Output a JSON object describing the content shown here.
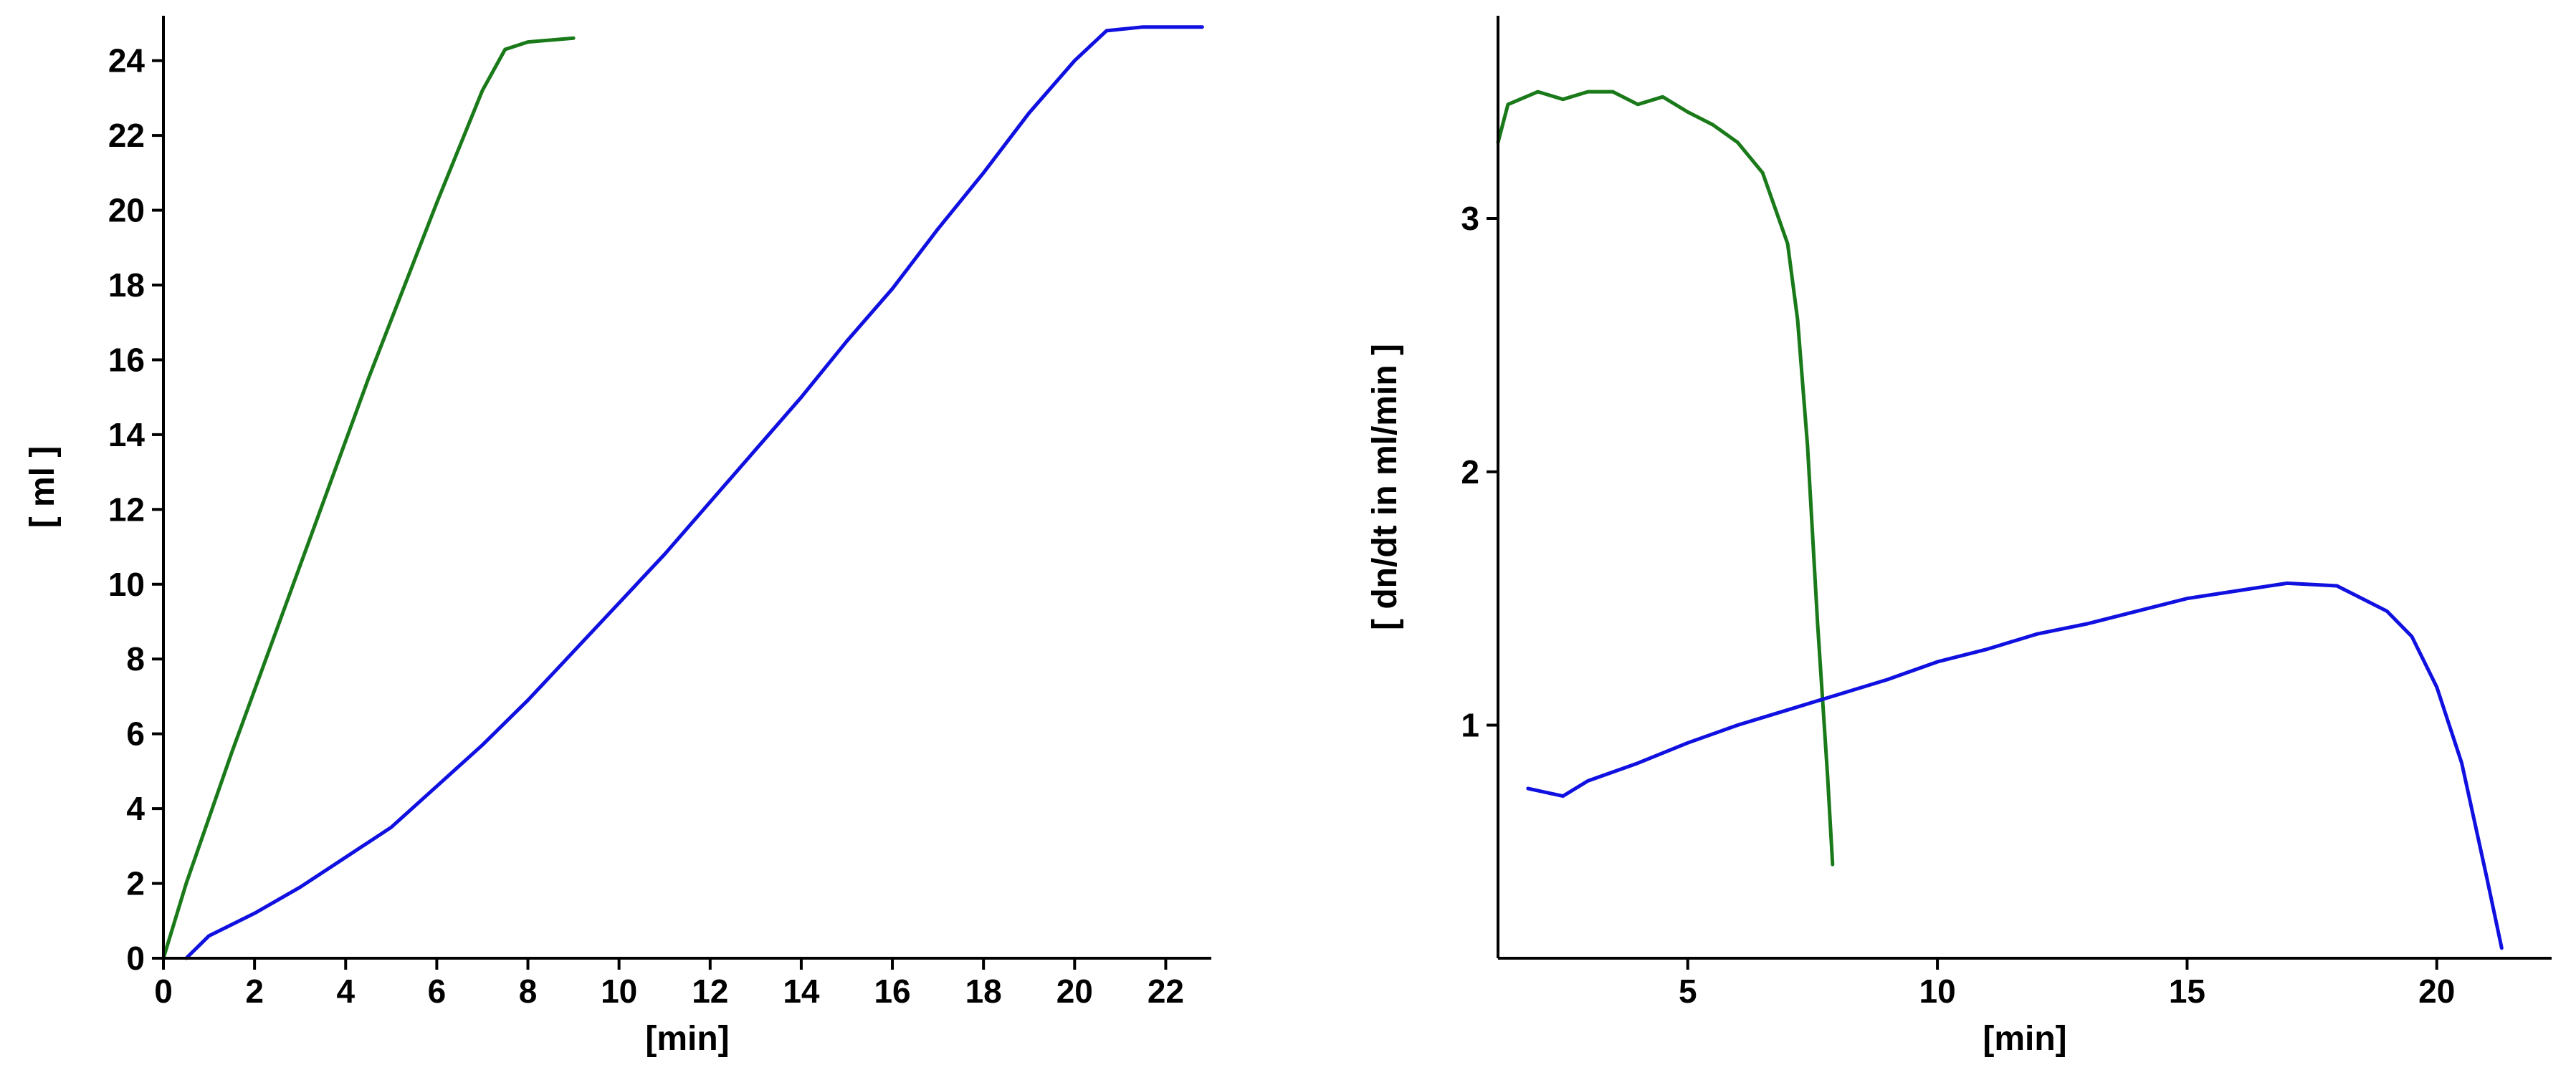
{
  "chart_data": [
    {
      "type": "line",
      "xlabel": "[min]",
      "ylabel": "[ ml ]",
      "xlim": [
        0,
        23
      ],
      "ylim": [
        0,
        25.2
      ],
      "xticks": [
        0,
        2,
        4,
        6,
        8,
        10,
        12,
        14,
        16,
        18,
        20,
        22
      ],
      "yticks": [
        0,
        2,
        4,
        6,
        8,
        10,
        12,
        14,
        16,
        18,
        20,
        22,
        24
      ],
      "grid": false,
      "series": [
        {
          "color": "#1a7a1a",
          "points": [
            [
              0,
              0
            ],
            [
              0.5,
              2
            ],
            [
              1.5,
              5.5
            ],
            [
              3,
              10.5
            ],
            [
              4.5,
              15.5
            ],
            [
              6,
              20.2
            ],
            [
              7,
              23.2
            ],
            [
              7.5,
              24.3
            ],
            [
              8,
              24.5
            ],
            [
              9,
              24.6
            ]
          ]
        },
        {
          "color": "#1010e0",
          "points": [
            [
              0.5,
              0
            ],
            [
              1,
              0.6
            ],
            [
              2,
              1.2
            ],
            [
              3,
              1.9
            ],
            [
              4,
              2.7
            ],
            [
              5,
              3.5
            ],
            [
              6,
              4.6
            ],
            [
              7,
              5.7
            ],
            [
              8,
              6.9
            ],
            [
              9,
              8.2
            ],
            [
              10,
              9.5
            ],
            [
              11,
              10.8
            ],
            [
              12,
              12.2
            ],
            [
              13,
              13.6
            ],
            [
              14,
              15.0
            ],
            [
              15,
              16.5
            ],
            [
              16,
              17.9
            ],
            [
              17,
              19.5
            ],
            [
              18,
              21.0
            ],
            [
              19,
              22.6
            ],
            [
              20,
              24.0
            ],
            [
              20.7,
              24.8
            ],
            [
              21.5,
              24.9
            ],
            [
              22.8,
              24.9
            ]
          ]
        }
      ]
    },
    {
      "type": "line",
      "xlabel": "[min]",
      "ylabel": "[ dn/dt in ml/min ]",
      "xlim": [
        1.2,
        22.3
      ],
      "ylim": [
        0.08,
        3.8
      ],
      "xticks": [
        5,
        10,
        15,
        20
      ],
      "yticks": [
        1,
        2,
        3
      ],
      "grid": false,
      "series": [
        {
          "color": "#1a7a1a",
          "points": [
            [
              1.2,
              3.3
            ],
            [
              1.4,
              3.45
            ],
            [
              2,
              3.5
            ],
            [
              2.5,
              3.47
            ],
            [
              3,
              3.5
            ],
            [
              3.5,
              3.5
            ],
            [
              4,
              3.45
            ],
            [
              4.5,
              3.48
            ],
            [
              5,
              3.42
            ],
            [
              5.5,
              3.37
            ],
            [
              6,
              3.3
            ],
            [
              6.5,
              3.18
            ],
            [
              7,
              2.9
            ],
            [
              7.2,
              2.6
            ],
            [
              7.4,
              2.1
            ],
            [
              7.6,
              1.4
            ],
            [
              7.8,
              0.8
            ],
            [
              7.9,
              0.45
            ]
          ]
        },
        {
          "color": "#1010e0",
          "points": [
            [
              1.8,
              0.75
            ],
            [
              2.5,
              0.72
            ],
            [
              3,
              0.78
            ],
            [
              4,
              0.85
            ],
            [
              5,
              0.93
            ],
            [
              6,
              1.0
            ],
            [
              7,
              1.06
            ],
            [
              8,
              1.12
            ],
            [
              9,
              1.18
            ],
            [
              10,
              1.25
            ],
            [
              11,
              1.3
            ],
            [
              12,
              1.36
            ],
            [
              13,
              1.4
            ],
            [
              14,
              1.45
            ],
            [
              15,
              1.5
            ],
            [
              16,
              1.53
            ],
            [
              17,
              1.56
            ],
            [
              18,
              1.55
            ],
            [
              19,
              1.45
            ],
            [
              19.5,
              1.35
            ],
            [
              20,
              1.15
            ],
            [
              20.5,
              0.85
            ],
            [
              21,
              0.4
            ],
            [
              21.3,
              0.12
            ]
          ]
        }
      ]
    }
  ]
}
